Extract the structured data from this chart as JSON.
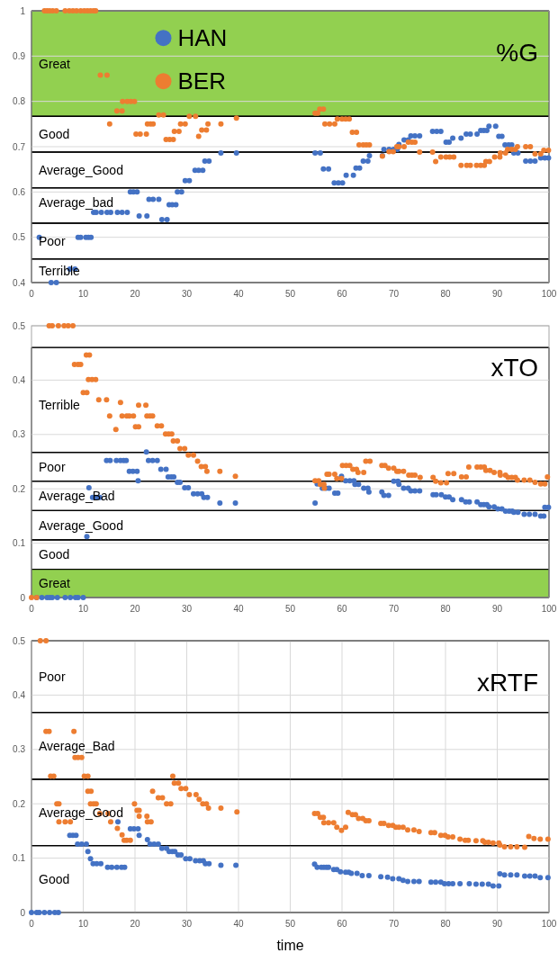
{
  "chart_data": [
    {
      "type": "scatter",
      "title": "%G",
      "xlim": [
        0,
        100
      ],
      "xticks": [
        0,
        10,
        20,
        30,
        40,
        50,
        60,
        70,
        80,
        90,
        100
      ],
      "ylim": [
        0.4,
        1
      ],
      "yticks": [
        0.4,
        0.5,
        0.6,
        0.7,
        0.8,
        0.9,
        1
      ],
      "grid": "y",
      "legend": "top left",
      "marker": "circle",
      "bands": [
        {
          "axis": "y",
          "from": 0.767,
          "to": 1,
          "label": "Great",
          "color": "#92d050"
        },
        {
          "axis": "y",
          "from": 0.688,
          "to": 0.767,
          "label": "Good",
          "color": "#ffffff"
        },
        {
          "axis": "y",
          "from": 0.609,
          "to": 0.688,
          "label": "Average_Good",
          "color": "#ffffff"
        },
        {
          "axis": "y",
          "from": 0.531,
          "to": 0.609,
          "label": "Average_bad",
          "color": "#ffffff"
        },
        {
          "axis": "y",
          "from": 0.452,
          "to": 0.531,
          "label": "Poor",
          "color": "#ffffff"
        },
        {
          "axis": "y",
          "from": 0.4,
          "to": 0.452,
          "label": "Terrible",
          "color": "#ffffff"
        }
      ],
      "series": [
        {
          "name": "HAN",
          "color": "#4472c4",
          "x": [
            1.5,
            3.8,
            4.8,
            7.4,
            8.4,
            9,
            9.5,
            10.5,
            11,
            11.5,
            12,
            12.5,
            13.5,
            14.6,
            15.3,
            16.6,
            17.5,
            18.5,
            19.1,
            19.7,
            20.4,
            20.8,
            22.3,
            22.7,
            23.5,
            24.6,
            25.2,
            26.2,
            26.6,
            27.2,
            27.9,
            28.2,
            29,
            29.7,
            30.5,
            31.6,
            32.3,
            33.1,
            33.5,
            34.3,
            36.6,
            39.6,
            54.8,
            55.8,
            56.4,
            57.4,
            58.5,
            59.3,
            60.1,
            60.8,
            62.2,
            62.7,
            63.4,
            64.1,
            65,
            65.3,
            67.8,
            68.1,
            69.1,
            70,
            70.7,
            71,
            72,
            72.8,
            73.3,
            74.1,
            75,
            77.5,
            78.3,
            79.1,
            80.1,
            80.7,
            81.4,
            83,
            84,
            84.8,
            86.1,
            86.8,
            87.4,
            88,
            88.4,
            89.7,
            90.3,
            90.9,
            91.5,
            92.2,
            92.8,
            93.2,
            94,
            95.5,
            96.4,
            97.3,
            98.4,
            99.2,
            99.9
          ],
          "values": [
            0.5,
            0.4,
            0.4,
            0.43,
            0.43,
            0.5,
            0.5,
            0.5,
            0.5,
            0.5,
            0.555,
            0.555,
            0.555,
            0.555,
            0.555,
            0.555,
            0.555,
            0.555,
            0.6,
            0.6,
            0.6,
            0.547,
            0.547,
            0.584,
            0.584,
            0.584,
            0.539,
            0.539,
            0.572,
            0.572,
            0.572,
            0.6,
            0.6,
            0.625,
            0.625,
            0.648,
            0.648,
            0.648,
            0.668,
            0.668,
            0.686,
            0.686,
            0.686,
            0.686,
            0.651,
            0.651,
            0.62,
            0.62,
            0.62,
            0.637,
            0.637,
            0.653,
            0.653,
            0.668,
            0.668,
            0.68,
            0.68,
            0.694,
            0.694,
            0.694,
            0.694,
            0.705,
            0.715,
            0.715,
            0.724,
            0.724,
            0.724,
            0.734,
            0.734,
            0.734,
            0.71,
            0.71,
            0.719,
            0.719,
            0.728,
            0.728,
            0.728,
            0.736,
            0.736,
            0.736,
            0.745,
            0.745,
            0.723,
            0.723,
            0.704,
            0.704,
            0.704,
            0.686,
            0.686,
            0.668,
            0.668,
            0.668,
            0.675,
            0.675,
            0.675
          ]
        },
        {
          "name": "BER",
          "color": "#ed7d31",
          "x": [
            2.5,
            3,
            3.5,
            4.1,
            4.8,
            6.5,
            7.3,
            8,
            8.7,
            9.5,
            10.2,
            10.8,
            11.4,
            12,
            12.4,
            13.3,
            14.6,
            15.1,
            16.5,
            17.5,
            17.6,
            18.5,
            19.2,
            19.9,
            20.2,
            21,
            22.2,
            22.4,
            23,
            23.5,
            24.6,
            25.5,
            26,
            26.7,
            27.4,
            27.6,
            28.5,
            28.8,
            29.7,
            30.5,
            31.7,
            32.3,
            32.9,
            33.8,
            34.1,
            36.6,
            39.6,
            54.8,
            55.3,
            55.7,
            56.4,
            56.7,
            57.6,
            58.6,
            59.1,
            60,
            60.7,
            61.4,
            62,
            62.8,
            63.3,
            64.1,
            64.7,
            65.3,
            67.8,
            69.1,
            69.9,
            70.6,
            71,
            72,
            72.8,
            73.5,
            74.1,
            75,
            77.5,
            78.1,
            79.1,
            80.1,
            80.8,
            81.6,
            83,
            84.1,
            84.8,
            86,
            86.8,
            87.5,
            87.8,
            88.5,
            89.5,
            90.5,
            90.6,
            91.6,
            92,
            92.8,
            93.5,
            93.9,
            95.5,
            96.4,
            97.3,
            98.4,
            99,
            99.9
          ],
          "values": [
            1,
            1,
            1,
            1,
            1,
            1,
            1,
            1,
            1,
            1,
            1,
            1,
            1,
            1,
            1,
            0.858,
            0.858,
            0.75,
            0.779,
            0.779,
            0.8,
            0.8,
            0.8,
            0.8,
            0.728,
            0.728,
            0.728,
            0.75,
            0.75,
            0.75,
            0.77,
            0.77,
            0.716,
            0.716,
            0.716,
            0.734,
            0.734,
            0.75,
            0.75,
            0.767,
            0.767,
            0.723,
            0.737,
            0.737,
            0.75,
            0.75,
            0.763,
            0.774,
            0.774,
            0.783,
            0.783,
            0.75,
            0.75,
            0.75,
            0.761,
            0.761,
            0.761,
            0.761,
            0.732,
            0.732,
            0.704,
            0.704,
            0.704,
            0.704,
            0.679,
            0.689,
            0.689,
            0.7,
            0.7,
            0.7,
            0.71,
            0.71,
            0.71,
            0.688,
            0.688,
            0.667,
            0.677,
            0.677,
            0.677,
            0.677,
            0.659,
            0.659,
            0.659,
            0.659,
            0.659,
            0.659,
            0.667,
            0.667,
            0.677,
            0.677,
            0.686,
            0.686,
            0.694,
            0.694,
            0.694,
            0.7,
            0.7,
            0.7,
            0.684,
            0.684,
            0.692,
            0.692
          ]
        }
      ]
    },
    {
      "type": "scatter",
      "title": "xTO",
      "xlim": [
        0,
        100
      ],
      "xticks": [
        0,
        10,
        20,
        30,
        40,
        50,
        60,
        70,
        80,
        90,
        100
      ],
      "ylim": [
        0,
        0.5
      ],
      "yticks": [
        0,
        0.1,
        0.2,
        0.3,
        0.4,
        0.5
      ],
      "grid": "y",
      "marker": "circle",
      "bands": [
        {
          "axis": "y",
          "from": 0.267,
          "to": 0.46,
          "label": "Terrible",
          "color": "#ffffff"
        },
        {
          "axis": "y",
          "from": 0.214,
          "to": 0.267,
          "label": "Poor",
          "color": "#ffffff"
        },
        {
          "axis": "y",
          "from": 0.16,
          "to": 0.214,
          "label": "Average_Bad",
          "color": "#ffffff"
        },
        {
          "axis": "y",
          "from": 0.106,
          "to": 0.16,
          "label": "Average_Good",
          "color": "#ffffff"
        },
        {
          "axis": "y",
          "from": 0.052,
          "to": 0.106,
          "label": "Good",
          "color": "#ffffff"
        },
        {
          "axis": "y",
          "from": 0,
          "to": 0.052,
          "label": "Great",
          "color": "#92d050"
        }
      ],
      "series": [
        {
          "color": "#4472c4",
          "x": [
            1,
            2,
            3,
            3.5,
            4,
            5,
            6.5,
            7.5,
            8.5,
            9,
            10,
            10.7,
            11.1,
            11.8,
            12.5,
            13.2,
            14.5,
            15.2,
            16.4,
            17.2,
            17.8,
            18.3,
            18.9,
            19.6,
            20.4,
            20.6,
            22.2,
            22.6,
            23.4,
            24.3,
            25,
            26,
            26.4,
            27,
            27.5,
            28.2,
            28.7,
            29.6,
            30.3,
            31.3,
            32.1,
            32.9,
            33.3,
            34,
            36.4,
            39.4,
            54.8,
            55.2,
            55.8,
            56.2,
            56.9,
            57.5,
            58.6,
            59.2,
            59.9,
            60.7,
            61.5,
            62.3,
            62.5,
            63.2,
            64.2,
            65,
            65.2,
            67.7,
            68.1,
            69,
            70,
            70.8,
            71,
            71.9,
            72.8,
            73.3,
            74.1,
            75,
            77.6,
            78.2,
            79.2,
            80,
            80.7,
            81.4,
            83.1,
            83.9,
            84.6,
            86.1,
            86.8,
            87.4,
            88,
            88.4,
            89.4,
            90.1,
            90.9,
            91.6,
            92.3,
            92.9,
            93.2,
            94,
            95.2,
            96.2,
            97.3,
            98.4,
            99,
            99.2,
            99.9
          ],
          "values": [
            0,
            0,
            0,
            0,
            0,
            0,
            0,
            0,
            0,
            0,
            0,
            0.112,
            0.202,
            0.184,
            0.184,
            0.184,
            0.252,
            0.252,
            0.252,
            0.252,
            0.252,
            0.252,
            0.232,
            0.232,
            0.232,
            0.215,
            0.268,
            0.252,
            0.252,
            0.252,
            0.236,
            0.236,
            0.222,
            0.222,
            0.222,
            0.212,
            0.212,
            0.202,
            0.202,
            0.191,
            0.191,
            0.191,
            0.184,
            0.184,
            0.174,
            0.174,
            0.174,
            0.209,
            0.209,
            0.201,
            0.201,
            0.201,
            0.192,
            0.192,
            0.223,
            0.215,
            0.215,
            0.215,
            0.208,
            0.208,
            0.201,
            0.201,
            0.194,
            0.194,
            0.188,
            0.188,
            0.214,
            0.214,
            0.208,
            0.201,
            0.201,
            0.196,
            0.196,
            0.196,
            0.189,
            0.189,
            0.189,
            0.185,
            0.185,
            0.18,
            0.18,
            0.176,
            0.176,
            0.176,
            0.171,
            0.171,
            0.171,
            0.167,
            0.167,
            0.163,
            0.163,
            0.159,
            0.159,
            0.159,
            0.157,
            0.157,
            0.153,
            0.153,
            0.153,
            0.15,
            0.15,
            0.166,
            0.166
          ]
        },
        {
          "color": "#ed7d31",
          "x": [
            0,
            1,
            3.4,
            4,
            5.2,
            6.3,
            7.1,
            8,
            8.3,
            9,
            9.5,
            10,
            10.7,
            10.6,
            11.2,
            11,
            11.7,
            12.4,
            13,
            14.5,
            15.1,
            16.3,
            17.2,
            17.5,
            18.4,
            18.9,
            19.7,
            20.1,
            20.7,
            20.7,
            22.1,
            22.3,
            22.9,
            23.4,
            24.3,
            25.1,
            25.9,
            26.5,
            27.1,
            27.4,
            28.2,
            28.7,
            29.6,
            30.3,
            31.3,
            32.1,
            32.8,
            33.6,
            33.9,
            36.4,
            39.4,
            54.8,
            55.5,
            55.8,
            56.5,
            56.6,
            57.1,
            57.5,
            58.6,
            59,
            59.9,
            60.1,
            60.8,
            61.5,
            62.1,
            62.8,
            63.1,
            64.2,
            64.6,
            65.4,
            67.7,
            68.3,
            69,
            70,
            70.6,
            71,
            71.9,
            72.9,
            73.5,
            74.1,
            75.1,
            77.6,
            78.1,
            79.1,
            80.2,
            80.5,
            81.6,
            83.1,
            84,
            84.5,
            86.1,
            86.8,
            87.5,
            87.8,
            88.6,
            89.4,
            90.5,
            90.6,
            91.6,
            92.1,
            92.8,
            93.5,
            93.9,
            95.2,
            96.3,
            97.3,
            98.4,
            99.2,
            99.7
          ],
          "values": [
            0,
            0,
            0.5,
            0.5,
            0.5,
            0.5,
            0.5,
            0.5,
            0.429,
            0.429,
            0.429,
            0.377,
            0.377,
            0.446,
            0.446,
            0.401,
            0.401,
            0.401,
            0.364,
            0.364,
            0.334,
            0.309,
            0.359,
            0.334,
            0.334,
            0.334,
            0.334,
            0.314,
            0.314,
            0.354,
            0.354,
            0.334,
            0.334,
            0.334,
            0.316,
            0.316,
            0.301,
            0.301,
            0.301,
            0.288,
            0.288,
            0.274,
            0.274,
            0.262,
            0.262,
            0.251,
            0.241,
            0.241,
            0.232,
            0.232,
            0.223,
            0.215,
            0.215,
            0.208,
            0.208,
            0.201,
            0.227,
            0.227,
            0.227,
            0.219,
            0.219,
            0.243,
            0.243,
            0.243,
            0.236,
            0.236,
            0.23,
            0.23,
            0.251,
            0.251,
            0.243,
            0.243,
            0.238,
            0.238,
            0.232,
            0.232,
            0.232,
            0.225,
            0.225,
            0.225,
            0.221,
            0.221,
            0.214,
            0.211,
            0.211,
            0.228,
            0.228,
            0.222,
            0.222,
            0.24,
            0.24,
            0.24,
            0.24,
            0.234,
            0.234,
            0.23,
            0.23,
            0.225,
            0.225,
            0.221,
            0.221,
            0.221,
            0.216,
            0.216,
            0.216,
            0.212,
            0.209,
            0.209,
            0.222
          ]
        }
      ]
    },
    {
      "type": "scatter",
      "title": "xRTF",
      "xlabel": "time",
      "xlim": [
        0,
        100
      ],
      "xticks": [
        0,
        10,
        20,
        30,
        40,
        50,
        60,
        70,
        80,
        90,
        100
      ],
      "ylim": [
        0,
        0.5
      ],
      "yticks": [
        0,
        0.1,
        0.2,
        0.3,
        0.4,
        0.5
      ],
      "grid": true,
      "marker": "circle",
      "bands": [
        {
          "axis": "y",
          "from": 0.368,
          "to": 0.5,
          "label": "Poor",
          "color": "#ffffff"
        },
        {
          "axis": "y",
          "from": 0.245,
          "to": 0.368,
          "label": "Average_Bad",
          "color": "#ffffff"
        },
        {
          "axis": "y",
          "from": 0.123,
          "to": 0.245,
          "label": "Average_Good",
          "color": "#ffffff"
        },
        {
          "axis": "y",
          "from": 0,
          "to": 0.123,
          "label": "Good",
          "color": "#ffffff"
        }
      ],
      "series": [
        {
          "color": "#4472c4",
          "x": [
            0,
            1,
            1.5,
            2.5,
            3.5,
            4.5,
            5.2,
            7.4,
            8,
            8.6,
            8.9,
            9.7,
            10.6,
            10.9,
            11.4,
            11.9,
            12.6,
            13.4,
            14.7,
            15.5,
            16.5,
            17.4,
            18,
            16.7,
            19.1,
            19.8,
            20.6,
            20.8,
            22.4,
            22.9,
            23.7,
            24.5,
            25.2,
            26.1,
            26.6,
            27.2,
            27.7,
            28.3,
            28.9,
            29.8,
            30.6,
            31.7,
            32.5,
            33.2,
            33.6,
            34.3,
            36.6,
            39.5,
            54.7,
            55.2,
            56,
            56.5,
            57,
            57.4,
            58.4,
            59,
            59.7,
            60.7,
            61.3,
            61.8,
            62.9,
            63.9,
            65.2,
            67.5,
            68.8,
            69.8,
            71,
            71.8,
            72.7,
            73.9,
            74.9,
            77.2,
            78.1,
            79.1,
            79.8,
            80.6,
            81.4,
            82.8,
            84.6,
            85.9,
            87.1,
            88.3,
            89.2,
            90.3,
            90.5,
            91.4,
            92.6,
            93.8,
            95.3,
            96.3,
            97.3,
            98.3,
            99.8
          ],
          "values": [
            0,
            0,
            0,
            0,
            0,
            0,
            0,
            0.142,
            0.142,
            0.142,
            0.126,
            0.126,
            0.126,
            0.112,
            0.099,
            0.09,
            0.09,
            0.09,
            0.083,
            0.083,
            0.083,
            0.083,
            0.083,
            0.167,
            0.154,
            0.154,
            0.154,
            0.142,
            0.134,
            0.126,
            0.126,
            0.126,
            0.118,
            0.118,
            0.112,
            0.112,
            0.112,
            0.106,
            0.106,
            0.099,
            0.099,
            0.095,
            0.095,
            0.095,
            0.09,
            0.09,
            0.087,
            0.087,
            0.089,
            0.083,
            0.083,
            0.083,
            0.083,
            0.083,
            0.079,
            0.079,
            0.075,
            0.074,
            0.074,
            0.072,
            0.072,
            0.068,
            0.068,
            0.066,
            0.065,
            0.062,
            0.062,
            0.059,
            0.057,
            0.057,
            0.057,
            0.056,
            0.056,
            0.056,
            0.053,
            0.053,
            0.053,
            0.053,
            0.053,
            0.052,
            0.052,
            0.052,
            0.049,
            0.049,
            0.071,
            0.069,
            0.069,
            0.069,
            0.067,
            0.067,
            0.067,
            0.064,
            0.064
          ]
        },
        {
          "color": "#ed7d31",
          "x": [
            1.7,
            2.8,
            2.8,
            3.4,
            8.2,
            3.7,
            4.3,
            8.4,
            9,
            9.7,
            10.2,
            10.9,
            10.9,
            11.5,
            11.4,
            12,
            12.5,
            4.9,
            5.3,
            5.3,
            6.5,
            7.5,
            13.2,
            14.8,
            15.3,
            16.6,
            17.5,
            17.9,
            18.4,
            19.1,
            19.9,
            20.4,
            20.8,
            20.8,
            22.3,
            22.4,
            23.1,
            23.4,
            24.5,
            25.3,
            26.1,
            26.9,
            27.3,
            27.6,
            28.4,
            28.9,
            29.8,
            30.5,
            31.8,
            32.4,
            33.1,
            33.8,
            34.2,
            36.6,
            39.7,
            54.7,
            55.3,
            55.8,
            56.4,
            56.5,
            57.4,
            58.4,
            59,
            60.7,
            59.9,
            61.2,
            62,
            62.6,
            63.2,
            64,
            64.6,
            65.2,
            67.5,
            68.1,
            69,
            69.8,
            70.4,
            71,
            71.8,
            72.7,
            73.9,
            74.9,
            77.2,
            77.9,
            79.1,
            79.9,
            80.5,
            81.4,
            82.8,
            83.8,
            84.4,
            85.9,
            87.2,
            87.6,
            88.3,
            89.2,
            90.3,
            90.5,
            91.4,
            92.6,
            93.8,
            95.3,
            96.1,
            97.1,
            98.3,
            99.8
          ],
          "values": [
            0.5,
            0.5,
            0.333,
            0.333,
            0.333,
            0.251,
            0.251,
            0.285,
            0.285,
            0.285,
            0.251,
            0.251,
            0.223,
            0.223,
            0.2,
            0.2,
            0.2,
            0.2,
            0.2,
            0.167,
            0.167,
            0.167,
            0.182,
            0.182,
            0.167,
            0.155,
            0.143,
            0.133,
            0.133,
            0.133,
            0.2,
            0.188,
            0.188,
            0.177,
            0.177,
            0.167,
            0.167,
            0.223,
            0.211,
            0.211,
            0.2,
            0.2,
            0.251,
            0.238,
            0.238,
            0.228,
            0.228,
            0.217,
            0.217,
            0.208,
            0.2,
            0.2,
            0.192,
            0.192,
            0.185,
            0.182,
            0.182,
            0.175,
            0.175,
            0.165,
            0.165,
            0.165,
            0.157,
            0.157,
            0.151,
            0.184,
            0.18,
            0.18,
            0.173,
            0.173,
            0.169,
            0.169,
            0.164,
            0.164,
            0.16,
            0.16,
            0.157,
            0.157,
            0.157,
            0.152,
            0.152,
            0.149,
            0.147,
            0.147,
            0.142,
            0.142,
            0.139,
            0.139,
            0.135,
            0.133,
            0.133,
            0.132,
            0.132,
            0.129,
            0.129,
            0.128,
            0.128,
            0.124,
            0.121,
            0.121,
            0.121,
            0.12,
            0.14,
            0.136,
            0.135,
            0.135
          ]
        }
      ]
    }
  ]
}
